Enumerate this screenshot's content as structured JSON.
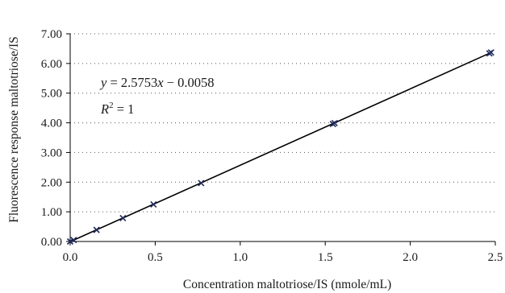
{
  "chart_data": {
    "type": "scatter",
    "title": "",
    "xlabel": "Concentration maltotriose/IS (nmole/mL)",
    "ylabel": "Fluorescence response maltotriose/IS",
    "xlim": [
      0,
      2.5
    ],
    "ylim": [
      0,
      7
    ],
    "x_ticks": [
      "0.0",
      "0.5",
      "1.0",
      "1.5",
      "2.0",
      "2.5"
    ],
    "y_ticks": [
      "0.00",
      "1.00",
      "2.00",
      "3.00",
      "4.00",
      "5.00",
      "6.00",
      "7.00"
    ],
    "grid": "horizontal dotted",
    "legend": "none",
    "series": [
      {
        "marker": "x",
        "color": "#1f2a5c",
        "x": [
          0.0,
          0.02,
          0.155,
          0.31,
          0.49,
          0.77,
          1.545,
          1.555,
          2.465,
          2.475
        ],
        "y": [
          0.0,
          0.05,
          0.39,
          0.79,
          1.25,
          1.97,
          3.96,
          3.99,
          6.34,
          6.37
        ]
      }
    ],
    "trendline": {
      "slope": 2.5753,
      "intercept": -0.0058,
      "x_range": [
        0,
        2.48
      ],
      "color": "#000000"
    },
    "annotations": {
      "equation": {
        "lhs": "y",
        "eq": " = 2.5753",
        "var": "x",
        "rest": " − 0.0058"
      },
      "r2": {
        "label": "R",
        "sup": "2",
        "rest": " = 1"
      }
    }
  }
}
